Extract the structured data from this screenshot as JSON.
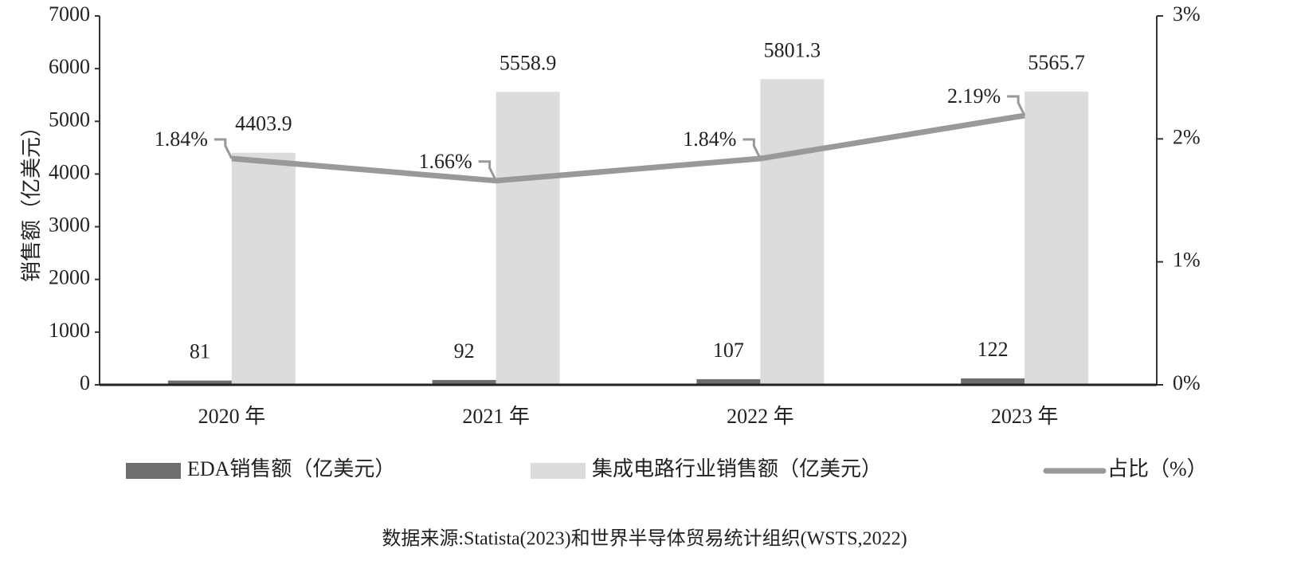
{
  "chart_data": {
    "type": "bar",
    "y_label": "销售额（亿美元）",
    "categories": [
      "2020 年",
      "2021 年",
      "2022 年",
      "2023 年"
    ],
    "series": [
      {
        "name": "EDA销售额（亿美元）",
        "color": "#6e6e6e",
        "values": [
          81,
          92,
          107,
          122
        ]
      },
      {
        "name": "集成电路行业销售额（亿美元）",
        "color": "#dcdcdc",
        "values": [
          4403.9,
          5558.9,
          5801.3,
          5565.7
        ]
      },
      {
        "name": "占比（%）",
        "type": "line",
        "axis": "y2",
        "color": "#999999",
        "values": [
          1.84,
          1.66,
          1.84,
          2.19
        ],
        "value_labels": [
          "1.84%",
          "1.66%",
          "1.84%",
          "2.19%"
        ]
      }
    ],
    "ylim": [
      0,
      7000
    ],
    "yticks": [
      0,
      1000,
      2000,
      3000,
      4000,
      5000,
      6000,
      7000
    ],
    "y2lim": [
      0,
      3
    ],
    "y2ticks": [
      {
        "value": 0,
        "label": "0%"
      },
      {
        "value": 1,
        "label": "1%"
      },
      {
        "value": 2,
        "label": "2%"
      },
      {
        "value": 3,
        "label": "3%"
      }
    ],
    "source": "数据来源:Statista(2023)和世界半导体贸易统计组织(WSTS,2022)"
  }
}
